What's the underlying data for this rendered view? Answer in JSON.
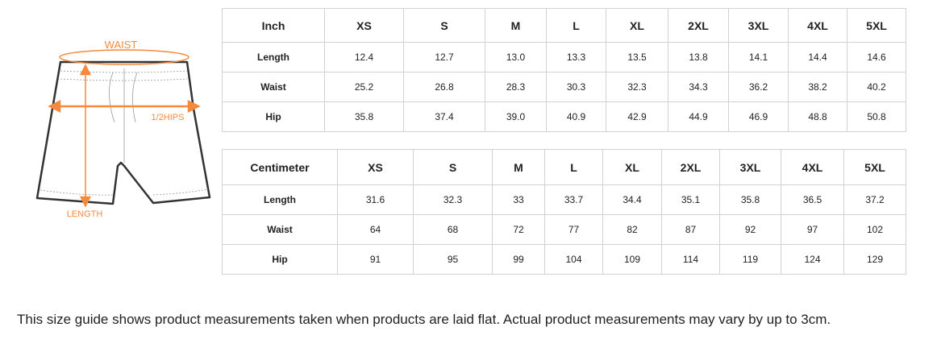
{
  "illustration": {
    "labels": {
      "waist": "WAIST",
      "hips": "1/2HIPS",
      "length": "LENGTH"
    },
    "accent_color": "#f58a3c"
  },
  "inch_table": {
    "header": [
      "Inch",
      "XS",
      "S",
      "M",
      "L",
      "XL",
      "2XL",
      "3XL",
      "4XL",
      "5XL"
    ],
    "rows": [
      [
        "Length",
        "12.4",
        "12.7",
        "13.0",
        "13.3",
        "13.5",
        "13.8",
        "14.1",
        "14.4",
        "14.6"
      ],
      [
        "Waist",
        "25.2",
        "26.8",
        "28.3",
        "30.3",
        "32.3",
        "34.3",
        "36.2",
        "38.2",
        "40.2"
      ],
      [
        "Hip",
        "35.8",
        "37.4",
        "39.0",
        "40.9",
        "42.9",
        "44.9",
        "46.9",
        "48.8",
        "50.8"
      ]
    ]
  },
  "cm_table": {
    "header": [
      "Centimeter",
      "XS",
      "S",
      "M",
      "L",
      "XL",
      "2XL",
      "3XL",
      "4XL",
      "5XL"
    ],
    "rows": [
      [
        "Length",
        "31.6",
        "32.3",
        "33",
        "33.7",
        "34.4",
        "35.1",
        "35.8",
        "36.5",
        "37.2"
      ],
      [
        "Waist",
        "64",
        "68",
        "72",
        "77",
        "82",
        "87",
        "92",
        "97",
        "102"
      ],
      [
        "Hip",
        "91",
        "95",
        "99",
        "104",
        "109",
        "114",
        "119",
        "124",
        "129"
      ]
    ]
  },
  "footer": "This size guide shows product measurements taken when products are laid flat. Actual product measurements may vary by up to 3cm."
}
